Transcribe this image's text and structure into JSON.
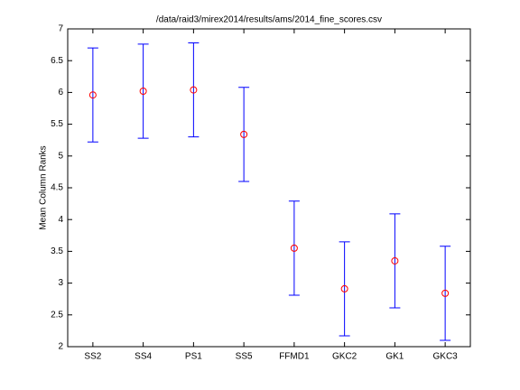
{
  "chart_data": {
    "type": "errorbar",
    "title": "/data/raid3/mirex2014/results/ams/2014_fine_scores.csv",
    "ylabel": "Mean Column Ranks",
    "categories": [
      "SS2",
      "SS4",
      "PS1",
      "SS5",
      "FFMD1",
      "GKC2",
      "GK1",
      "GKC3"
    ],
    "values": [
      5.96,
      6.02,
      6.04,
      5.34,
      3.55,
      2.91,
      3.35,
      2.84
    ],
    "errors": [
      0.74,
      0.74,
      0.74,
      0.74,
      0.74,
      0.74,
      0.74,
      0.74
    ],
    "bar_color": "#0000ff",
    "marker_color": "#ff0000",
    "ylim": [
      2,
      7
    ],
    "yticks": [
      2,
      2.5,
      3,
      3.5,
      4,
      4.5,
      5,
      5.5,
      6,
      6.5,
      7
    ]
  }
}
